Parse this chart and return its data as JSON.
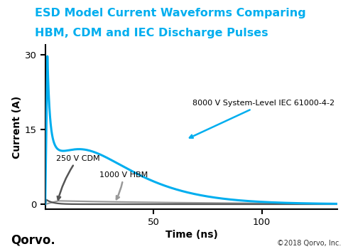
{
  "title_line1": "ESD Model Current Waveforms Comparing",
  "title_line2": "HBM, CDM and IEC Discharge Pulses",
  "title_color": "#00AEEF",
  "xlabel": "Time (ns)",
  "ylabel": "Current (A)",
  "xlim": [
    0,
    135
  ],
  "ylim": [
    -1,
    32
  ],
  "xticks": [
    50,
    100
  ],
  "yticks": [
    0,
    15,
    30
  ],
  "bg_color": "#FFFFFF",
  "iec_color": "#00AEEF",
  "hbm_color": "#999999",
  "cdm_color": "#555555",
  "annotation_iec": "8000 V System-Level IEC 61000-4-2",
  "annotation_hbm": "1000 V HBM",
  "annotation_cdm": "250 V CDM",
  "copyright": "©2018 Qorvo, Inc.",
  "line_width": 2.2,
  "ann_fontsize": 8.0
}
